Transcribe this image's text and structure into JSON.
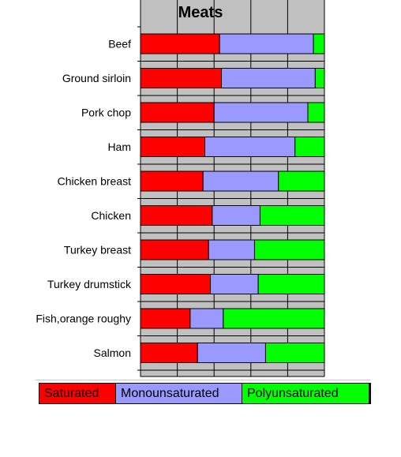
{
  "chart_data": {
    "type": "bar",
    "orientation": "horizontal",
    "stacked": true,
    "normalized": true,
    "title": "Meats",
    "categories": [
      "Beef",
      "Ground sirloin",
      "Pork chop",
      "Ham",
      "Chicken breast",
      "Chicken",
      "Turkey breast",
      "Turkey drumstick",
      "Fish,orange roughy",
      "Salmon"
    ],
    "series": [
      {
        "name": "Saturated",
        "color": "#ff0000",
        "values": [
          43,
          44,
          40,
          35,
          34,
          39,
          37,
          38,
          27,
          31
        ]
      },
      {
        "name": "Monounsaturated",
        "color": "#9999ff",
        "values": [
          51,
          51,
          51,
          49,
          41,
          26,
          25,
          26,
          18,
          37
        ]
      },
      {
        "name": "Polyunsaturated",
        "color": "#00ff00",
        "values": [
          6,
          5,
          9,
          16,
          25,
          35,
          38,
          36,
          55,
          32
        ]
      }
    ],
    "xlim": [
      0,
      100
    ],
    "grid": true,
    "plot_background": "#c0c0c0",
    "legend_position": "bottom"
  }
}
